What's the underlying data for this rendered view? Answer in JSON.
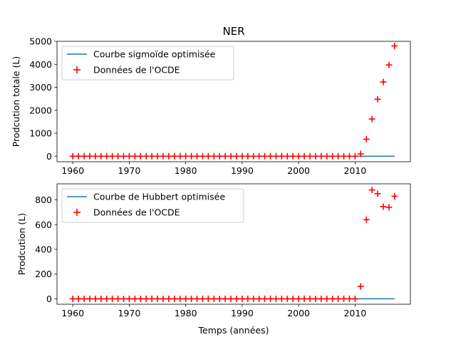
{
  "chart_data": [
    {
      "type": "line",
      "title": "NER",
      "xlabel": "",
      "ylabel": "Prodcution totale (L)",
      "xlim": [
        1957.2,
        2019.8
      ],
      "ylim": [
        -240,
        5000
      ],
      "xticks": [
        1960,
        1970,
        1980,
        1990,
        2000,
        2010
      ],
      "yticks": [
        0,
        1000,
        2000,
        3000,
        4000,
        5000
      ],
      "legend_position": "top-left",
      "series": [
        {
          "name": "Courbe sigmoïde optimisée",
          "kind": "line",
          "color": "#1f77b4",
          "x": [
            1960,
            2017
          ],
          "y": [
            0,
            0
          ]
        },
        {
          "name": "Données de l'OCDE",
          "kind": "scatter",
          "marker": "plus",
          "color": "#ff0000",
          "x": [
            1960,
            1961,
            1962,
            1963,
            1964,
            1965,
            1966,
            1967,
            1968,
            1969,
            1970,
            1971,
            1972,
            1973,
            1974,
            1975,
            1976,
            1977,
            1978,
            1979,
            1980,
            1981,
            1982,
            1983,
            1984,
            1985,
            1986,
            1987,
            1988,
            1989,
            1990,
            1991,
            1992,
            1993,
            1994,
            1995,
            1996,
            1997,
            1998,
            1999,
            2000,
            2001,
            2002,
            2003,
            2004,
            2005,
            2006,
            2007,
            2008,
            2009,
            2010,
            2011,
            2012,
            2013,
            2014,
            2015,
            2016,
            2017
          ],
          "y": [
            0,
            0,
            0,
            0,
            0,
            0,
            0,
            0,
            0,
            0,
            0,
            0,
            0,
            0,
            0,
            0,
            0,
            0,
            0,
            0,
            0,
            0,
            0,
            0,
            0,
            0,
            0,
            0,
            0,
            0,
            0,
            0,
            0,
            0,
            0,
            0,
            0,
            0,
            0,
            0,
            0,
            0,
            0,
            0,
            0,
            0,
            0,
            0,
            0,
            0,
            0,
            100,
            740,
            1620,
            2480,
            3230,
            3970,
            4800
          ]
        }
      ]
    },
    {
      "type": "line",
      "title": "",
      "xlabel": "Temps (années)",
      "ylabel": "Prodcution (L)",
      "xlim": [
        1957.2,
        2019.8
      ],
      "ylim": [
        -44,
        930
      ],
      "xticks": [
        1960,
        1970,
        1980,
        1990,
        2000,
        2010
      ],
      "yticks": [
        0,
        200,
        400,
        600,
        800
      ],
      "legend_position": "top-left",
      "series": [
        {
          "name": "Courbe de Hubbert optimisée",
          "kind": "line",
          "color": "#1f77b4",
          "x": [
            1960,
            2017
          ],
          "y": [
            0,
            0
          ]
        },
        {
          "name": "Données de l'OCDE",
          "kind": "scatter",
          "marker": "plus",
          "color": "#ff0000",
          "x": [
            1960,
            1961,
            1962,
            1963,
            1964,
            1965,
            1966,
            1967,
            1968,
            1969,
            1970,
            1971,
            1972,
            1973,
            1974,
            1975,
            1976,
            1977,
            1978,
            1979,
            1980,
            1981,
            1982,
            1983,
            1984,
            1985,
            1986,
            1987,
            1988,
            1989,
            1990,
            1991,
            1992,
            1993,
            1994,
            1995,
            1996,
            1997,
            1998,
            1999,
            2000,
            2001,
            2002,
            2003,
            2004,
            2005,
            2006,
            2007,
            2008,
            2009,
            2010,
            2011,
            2012,
            2013,
            2014,
            2015,
            2016,
            2017
          ],
          "y": [
            0,
            0,
            0,
            0,
            0,
            0,
            0,
            0,
            0,
            0,
            0,
            0,
            0,
            0,
            0,
            0,
            0,
            0,
            0,
            0,
            0,
            0,
            0,
            0,
            0,
            0,
            0,
            0,
            0,
            0,
            0,
            0,
            0,
            0,
            0,
            0,
            0,
            0,
            0,
            0,
            0,
            0,
            0,
            0,
            0,
            0,
            0,
            0,
            0,
            0,
            0,
            100,
            640,
            880,
            850,
            745,
            740,
            830
          ]
        }
      ]
    }
  ]
}
